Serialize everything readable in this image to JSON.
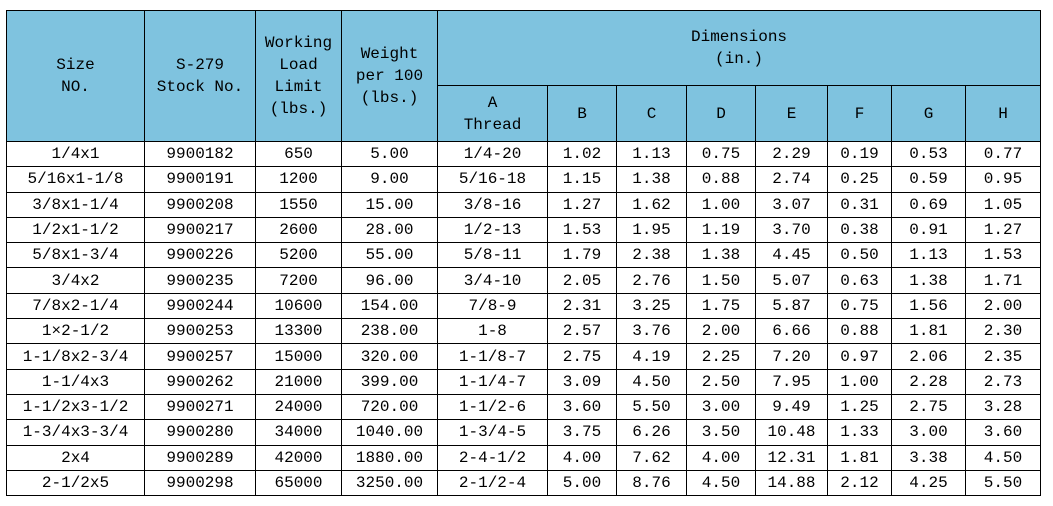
{
  "table": {
    "header": {
      "size": [
        "Size",
        "NO."
      ],
      "stock": [
        "S-279",
        "Stock  No."
      ],
      "wll": [
        "Working",
        "Load",
        "Limit",
        "(lbs.)"
      ],
      "weight": [
        "Weight",
        "per 100",
        "(lbs.)"
      ],
      "dimensions": [
        "Dimensions",
        "(in.)"
      ],
      "sub": [
        [
          "A",
          "Thread"
        ],
        [
          "B"
        ],
        [
          "C"
        ],
        [
          "D"
        ],
        [
          "E"
        ],
        [
          "F"
        ],
        [
          "G"
        ],
        [
          "H"
        ]
      ]
    },
    "rows": [
      [
        "1/4x1",
        "9900182",
        "650",
        "5.00",
        "1/4-20",
        "1.02",
        "1.13",
        "0.75",
        "2.29",
        "0.19",
        "0.53",
        "0.77"
      ],
      [
        "5/16x1-1/8",
        "9900191",
        "1200",
        "9.00",
        "5/16-18",
        "1.15",
        "1.38",
        "0.88",
        "2.74",
        "0.25",
        "0.59",
        "0.95"
      ],
      [
        "3/8x1-1/4",
        "9900208",
        "1550",
        "15.00",
        "3/8-16",
        "1.27",
        "1.62",
        "1.00",
        "3.07",
        "0.31",
        "0.69",
        "1.05"
      ],
      [
        "1/2x1-1/2",
        "9900217",
        "2600",
        "28.00",
        "1/2-13",
        "1.53",
        "1.95",
        "1.19",
        "3.70",
        "0.38",
        "0.91",
        "1.27"
      ],
      [
        "5/8x1-3/4",
        "9900226",
        "5200",
        "55.00",
        "5/8-11",
        "1.79",
        "2.38",
        "1.38",
        "4.45",
        "0.50",
        "1.13",
        "1.53"
      ],
      [
        "3/4x2",
        "9900235",
        "7200",
        "96.00",
        "3/4-10",
        "2.05",
        "2.76",
        "1.50",
        "5.07",
        "0.63",
        "1.38",
        "1.71"
      ],
      [
        "7/8x2-1/4",
        "9900244",
        "10600",
        "154.00",
        "7/8-9",
        "2.31",
        "3.25",
        "1.75",
        "5.87",
        "0.75",
        "1.56",
        "2.00"
      ],
      [
        "1×2-1/2",
        "9900253",
        "13300",
        "238.00",
        "1-8",
        "2.57",
        "3.76",
        "2.00",
        "6.66",
        "0.88",
        "1.81",
        "2.30"
      ],
      [
        "1-1/8x2-3/4",
        "9900257",
        "15000",
        "320.00",
        "1-1/8-7",
        "2.75",
        "4.19",
        "2.25",
        "7.20",
        "0.97",
        "2.06",
        "2.35"
      ],
      [
        "1-1/4x3",
        "9900262",
        "21000",
        "399.00",
        "1-1/4-7",
        "3.09",
        "4.50",
        "2.50",
        "7.95",
        "1.00",
        "2.28",
        "2.73"
      ],
      [
        "1-1/2x3-1/2",
        "9900271",
        "24000",
        "720.00",
        "1-1/2-6",
        "3.60",
        "5.50",
        "3.00",
        "9.49",
        "1.25",
        "2.75",
        "3.28"
      ],
      [
        "1-3/4x3-3/4",
        "9900280",
        "34000",
        "1040.00",
        "1-3/4-5",
        "3.75",
        "6.26",
        "3.50",
        "10.48",
        "1.33",
        "3.00",
        "3.60"
      ],
      [
        "2x4",
        "9900289",
        "42000",
        "1880.00",
        "2-4-1/2",
        "4.00",
        "7.62",
        "4.00",
        "12.31",
        "1.81",
        "3.38",
        "4.50"
      ],
      [
        "2-1/2x5",
        "9900298",
        "65000",
        "3250.00",
        "2-1/2-4",
        "5.00",
        "8.76",
        "4.50",
        "14.88",
        "2.12",
        "4.25",
        "5.50"
      ]
    ]
  }
}
